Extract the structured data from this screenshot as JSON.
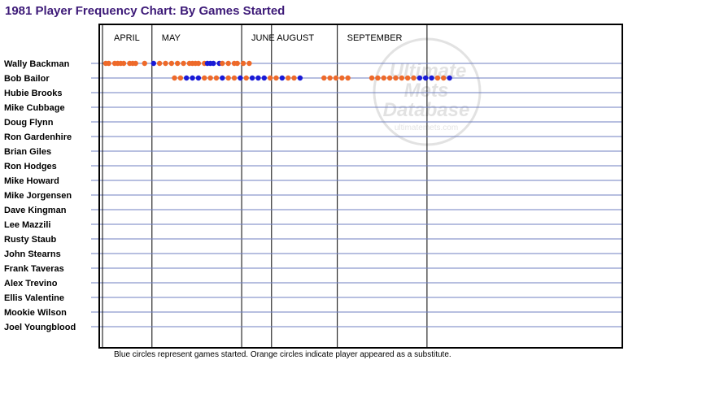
{
  "title": "1981 Player Frequency Chart: By Games Started",
  "caption": "Blue circles represent games started. Orange circles indicate player appeared as a substitute.",
  "watermark": {
    "line1": "Ultimate",
    "line2": "Mets",
    "line3": "Database",
    "line4": "ultimatemets.com"
  },
  "colors": {
    "started": "#1a1ad6",
    "substitute": "#ee6a2a",
    "row_line": "#6f7fc0",
    "frame": "#000000",
    "title": "#3d1a78"
  },
  "chart_data": {
    "type": "scatter",
    "title": "1981 Player Frequency Chart: By Games Started",
    "x_unit": "game",
    "months": [
      {
        "label": "APRIL",
        "start": 0
      },
      {
        "label": "MAY",
        "start": 8
      },
      {
        "label": "JUNE AUGUST",
        "start": 23
      },
      {
        "label": "SEPTEMBER",
        "start": 39
      }
    ],
    "dividers": [
      8,
      23,
      28,
      39,
      54
    ],
    "players": [
      {
        "name": "Wally Backman",
        "games": "00.0000.000..0..1.0.0.0.0.0.0000.0111.10.0.00.0.0."
      },
      {
        "name": "Bob Bailor",
        "games": ".......................0.0.1.1.1.0.0.0.1.0.0.1.0.1.1.1.0.0.1.0.0.1.......0.0.0.0.0.......0.0.0.0.0.0.0.0.1.1.1.0.0.1"
      },
      {
        "name": "Hubie Brooks",
        "games": ""
      },
      {
        "name": "Mike Cubbage",
        "games": ""
      },
      {
        "name": "Doug Flynn",
        "games": ""
      },
      {
        "name": "Ron Gardenhire",
        "games": ""
      },
      {
        "name": "Brian Giles",
        "games": ""
      },
      {
        "name": "Ron Hodges",
        "games": ""
      },
      {
        "name": "Mike Howard",
        "games": ""
      },
      {
        "name": "Mike Jorgensen",
        "games": ""
      },
      {
        "name": "Dave Kingman",
        "games": ""
      },
      {
        "name": "Lee Mazzili",
        "games": ""
      },
      {
        "name": "Rusty Staub",
        "games": ""
      },
      {
        "name": "John Stearns",
        "games": ""
      },
      {
        "name": "Frank Taveras",
        "games": ""
      },
      {
        "name": "Alex Trevino",
        "games": ""
      },
      {
        "name": "Ellis Valentine",
        "games": ""
      },
      {
        "name": "Mookie Wilson",
        "games": ""
      },
      {
        "name": "Joel Youngblood",
        "games": ""
      }
    ]
  }
}
